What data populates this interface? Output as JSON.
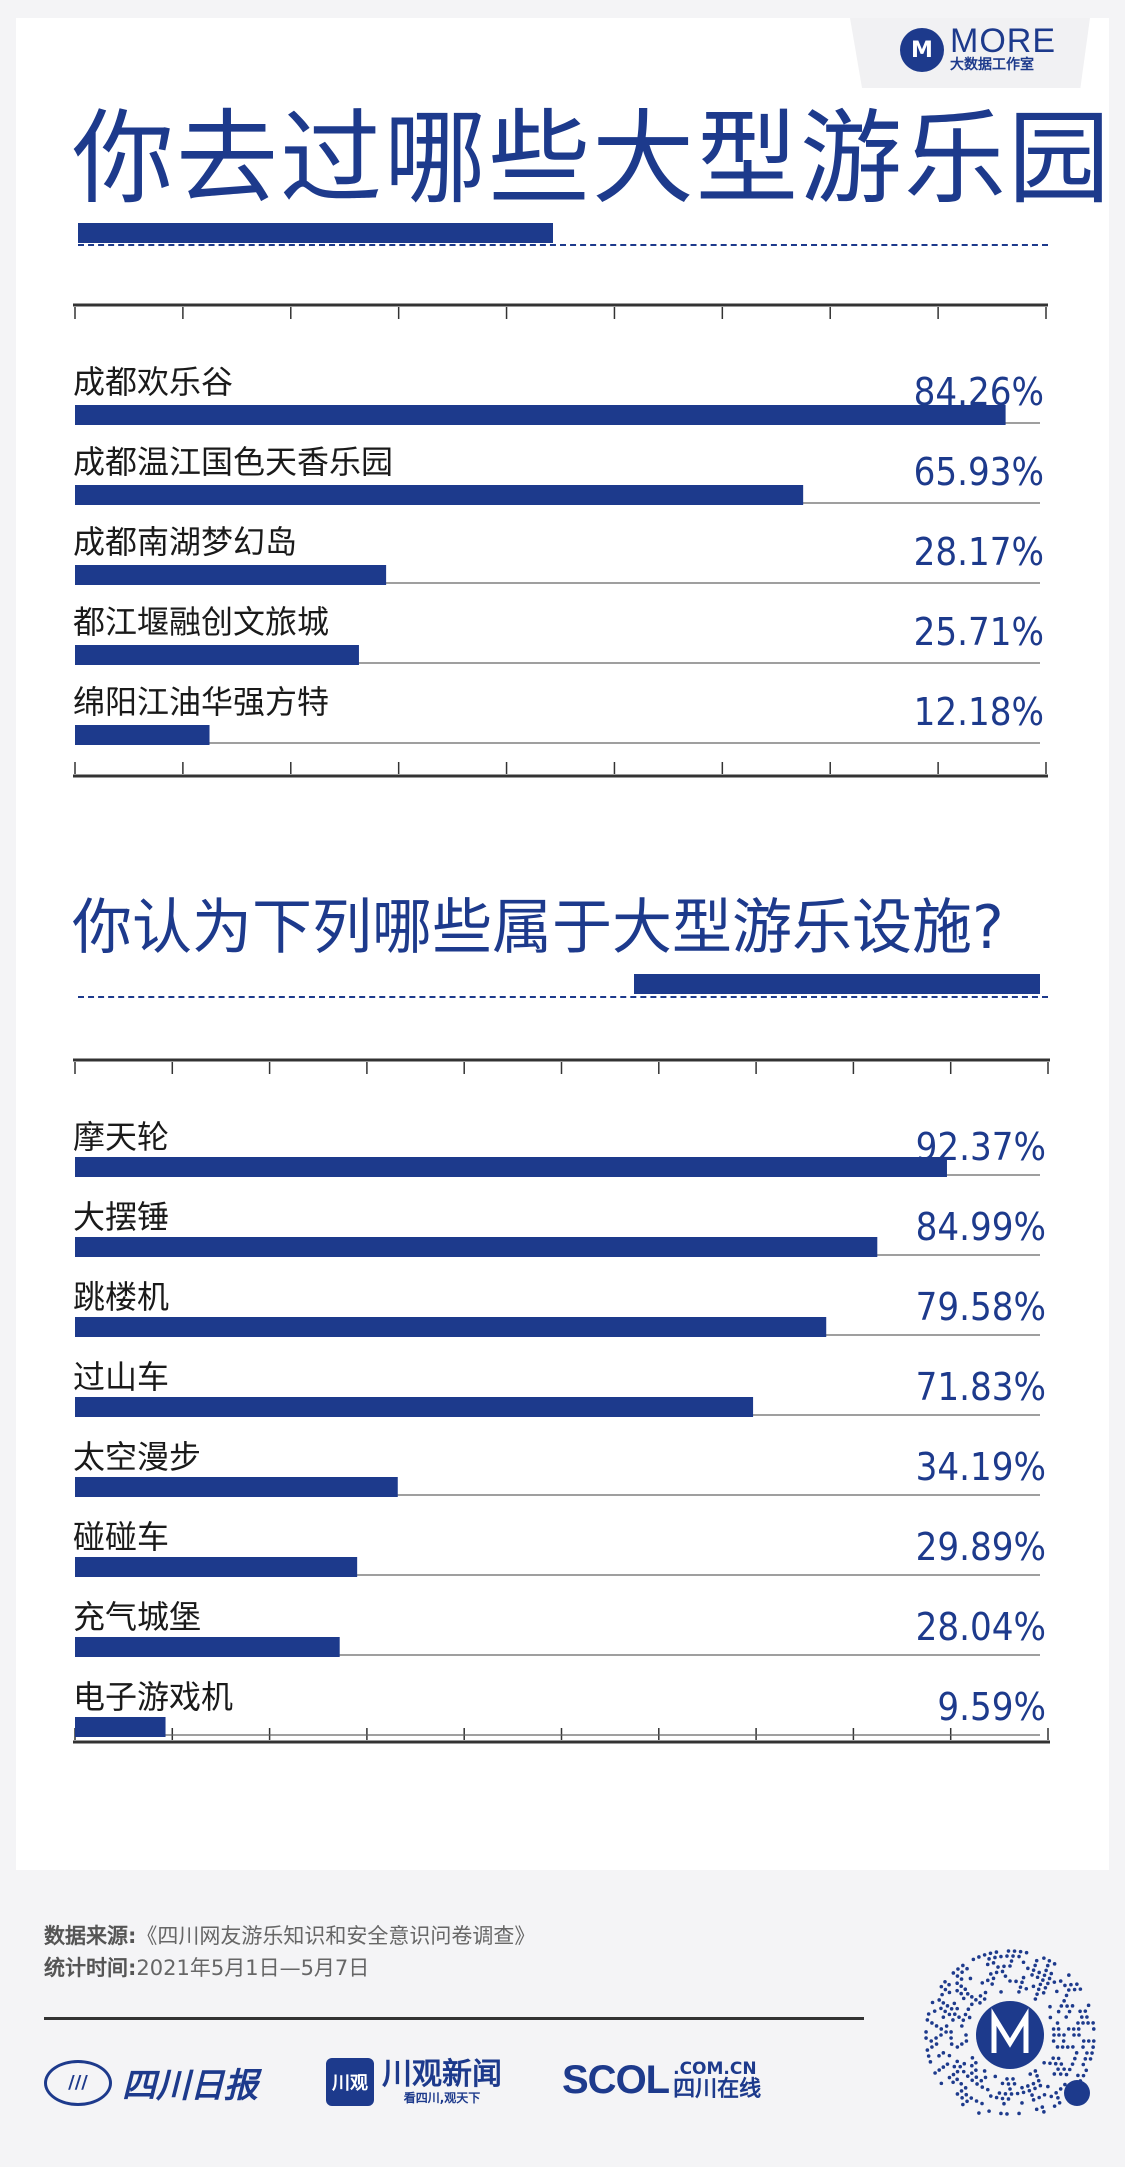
{
  "logo": {
    "mark": "M",
    "text": "MORE",
    "sub": "大数据工作室"
  },
  "titles": {
    "chart1": "你去过哪些大型游乐园",
    "chart2": "你认为下列哪些属于大型游乐设施?"
  },
  "chart_data": [
    {
      "type": "bar",
      "orientation": "horizontal",
      "title": "你去过哪些大型游乐园",
      "categories": [
        "成都欢乐谷",
        "成都温江国色天香乐园",
        "成都南湖梦幻岛",
        "都江堰融创文旅城",
        "绵阳江油华强方特"
      ],
      "values": [
        84.26,
        65.93,
        28.17,
        25.71,
        12.18
      ],
      "value_labels": [
        "84.26%",
        "65.93%",
        "28.17%",
        "25.71%",
        "12.18%"
      ],
      "xlim": [
        0,
        90
      ],
      "unit": "%",
      "color": "#1d3a8c"
    },
    {
      "type": "bar",
      "orientation": "horizontal",
      "title": "你认为下列哪些属于大型游乐设施?",
      "categories": [
        "摩天轮",
        "大摆锤",
        "跳楼机",
        "过山车",
        "太空漫步",
        "碰碰车",
        "充气城堡",
        "电子游戏机"
      ],
      "values": [
        92.37,
        84.99,
        79.58,
        71.83,
        34.19,
        29.89,
        28.04,
        9.59
      ],
      "value_labels": [
        "92.37%",
        "84.99%",
        "79.58%",
        "71.83%",
        "34.19%",
        "29.89%",
        "28.04%",
        "9.59%"
      ],
      "xlim": [
        0,
        100
      ],
      "unit": "%",
      "color": "#1d3a8c"
    }
  ],
  "source": {
    "label1": "数据来源:",
    "value1": "《四川网友游乐知识和安全意识问卷调查》",
    "label2": "统计时间:",
    "value2": "2021年5月1日—5月7日"
  },
  "footer": {
    "logo1": "四川日报",
    "logo2_box": "川观",
    "logo2": "川观新闻",
    "logo2_sub": "看四川,观天下",
    "logo3": "SCOL",
    "logo3_domain": ".COM.CN",
    "logo3_sub": "四川在线"
  },
  "colors": {
    "accent": "#1d3a8c",
    "background": "#f4f4f6"
  }
}
